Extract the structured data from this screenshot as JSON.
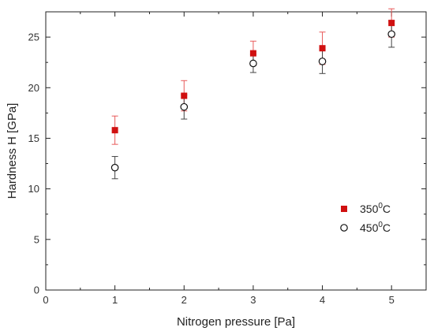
{
  "chart_data": {
    "type": "scatter",
    "xlabel": "Nitrogen pressure [Pa]",
    "ylabel": "Hardness H [GPa]",
    "xlim": [
      0,
      5.5
    ],
    "ylim": [
      0,
      27.5
    ],
    "xticks": [
      0,
      1,
      2,
      3,
      4,
      5
    ],
    "yticks": [
      0,
      5,
      10,
      15,
      20,
      25
    ],
    "grid": false,
    "legend_position": "right-middle",
    "series": [
      {
        "name": "350°C",
        "legend_base": "350",
        "legend_sup": "0",
        "legend_suffix": "C",
        "marker": "filled-square",
        "color": "#d01010",
        "error_color": "#e85a5a",
        "x": [
          1,
          2,
          3,
          4,
          5
        ],
        "y": [
          15.8,
          19.2,
          23.4,
          23.9,
          26.4
        ],
        "yerr": [
          1.4,
          1.5,
          1.2,
          1.6,
          1.4
        ]
      },
      {
        "name": "450°C",
        "legend_base": "450",
        "legend_sup": "0",
        "legend_suffix": "C",
        "marker": "open-circle",
        "color": "#111111",
        "error_color": "#444444",
        "x": [
          1,
          2,
          3,
          4,
          5
        ],
        "y": [
          12.1,
          18.1,
          22.4,
          22.6,
          25.3
        ],
        "yerr": [
          1.1,
          1.2,
          0.9,
          1.2,
          1.3
        ]
      }
    ]
  }
}
